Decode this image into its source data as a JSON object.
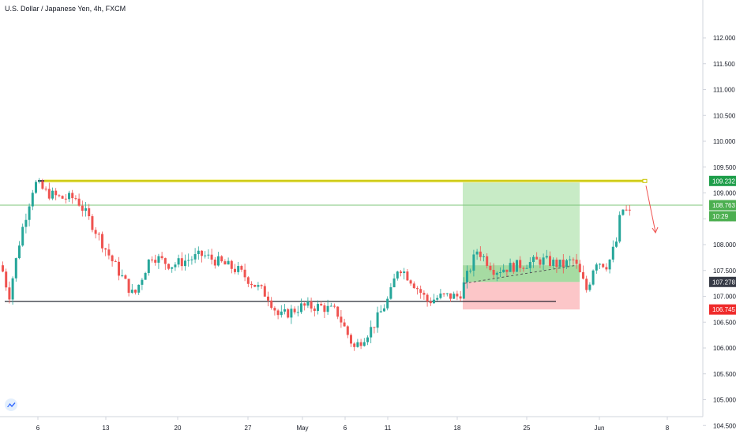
{
  "title": "U.S. Dollar / Japanese Yen, 4h, FXCM",
  "colors": {
    "up": "#26a69a",
    "down": "#ef5350",
    "resistance": "#c8c400",
    "resistance_fill": "#f5f19a",
    "profit_zone": "#c8ebc6",
    "profit_zone_dark": "#8fd18a",
    "loss_zone": "#fcc6c8",
    "price_line": "#7cc47a",
    "support": "#131722",
    "arrow": "#ef5350",
    "axis_text": "#131722",
    "axis_line": "#d1d4dc"
  },
  "chart_data": {
    "type": "candlestick",
    "symbol": "U.S. Dollar / Japanese Yen",
    "timeframe": "4h",
    "source": "FXCM",
    "x_ticks": [
      "6",
      "13",
      "20",
      "27",
      "May",
      "6",
      "11",
      "18",
      "25",
      "Jun",
      "8"
    ],
    "y_ticks": [
      112.0,
      111.5,
      111.0,
      110.5,
      110.0,
      109.5,
      109.0,
      108.5,
      108.0,
      107.5,
      107.0,
      106.5,
      106.0,
      105.5,
      105.0,
      104.5
    ],
    "y_tick_labels": [
      "112.000",
      "111.500",
      "111.000",
      "110.500",
      "110.000",
      "109.500",
      "109.000",
      "108.500",
      "108.000",
      "107.500",
      "107.000",
      "106.500",
      "106.000",
      "105.500",
      "105.000",
      "104.500"
    ],
    "ylim": [
      104.3,
      112.5
    ],
    "price_tags": [
      {
        "label": "109.232",
        "value": 109.232,
        "color": "#1e9e4a"
      },
      {
        "label": "108.763",
        "value": 108.763,
        "color": "#4caf50"
      },
      {
        "label": "10:29",
        "value": 108.55,
        "color": "#4caf50"
      },
      {
        "label": "107.278",
        "value": 107.278,
        "color": "#363a45"
      },
      {
        "label": "106.745",
        "value": 106.745,
        "color": "#ef2a2a"
      }
    ],
    "resistance_level": 109.232,
    "support_level": 106.9,
    "current_price": 108.763,
    "long_position": {
      "entry": 107.278,
      "target": 109.232,
      "stop": 106.745
    },
    "waypoints": [
      {
        "t": 0,
        "p": 107.6
      },
      {
        "t": 10,
        "p": 107.0
      },
      {
        "t": 25,
        "p": 108.2
      },
      {
        "t": 42,
        "p": 109.2
      },
      {
        "t": 58,
        "p": 109.0
      },
      {
        "t": 75,
        "p": 108.9
      },
      {
        "t": 95,
        "p": 108.9
      },
      {
        "t": 115,
        "p": 108.4
      },
      {
        "t": 140,
        "p": 107.7
      },
      {
        "t": 168,
        "p": 107.0
      },
      {
        "t": 190,
        "p": 107.8
      },
      {
        "t": 215,
        "p": 107.6
      },
      {
        "t": 255,
        "p": 107.8
      },
      {
        "t": 300,
        "p": 107.5
      },
      {
        "t": 338,
        "p": 107.0
      },
      {
        "t": 352,
        "p": 106.6
      },
      {
        "t": 380,
        "p": 106.8
      },
      {
        "t": 405,
        "p": 106.8
      },
      {
        "t": 425,
        "p": 106.7
      },
      {
        "t": 447,
        "p": 106.0
      },
      {
        "t": 470,
        "p": 106.4
      },
      {
        "t": 492,
        "p": 107.0
      },
      {
        "t": 503,
        "p": 107.6
      },
      {
        "t": 520,
        "p": 107.3
      },
      {
        "t": 540,
        "p": 106.9
      },
      {
        "t": 558,
        "p": 107.0
      },
      {
        "t": 580,
        "p": 107.0
      },
      {
        "t": 603,
        "p": 107.9
      },
      {
        "t": 625,
        "p": 107.5
      },
      {
        "t": 655,
        "p": 107.6
      },
      {
        "t": 685,
        "p": 107.7
      },
      {
        "t": 710,
        "p": 107.6
      },
      {
        "t": 725,
        "p": 107.7
      },
      {
        "t": 742,
        "p": 107.1
      },
      {
        "t": 752,
        "p": 107.7
      },
      {
        "t": 768,
        "p": 107.6
      },
      {
        "t": 780,
        "p": 108.1
      },
      {
        "t": 785,
        "p": 108.7
      },
      {
        "t": 797,
        "p": 108.6
      }
    ],
    "note_arrow": "down"
  }
}
